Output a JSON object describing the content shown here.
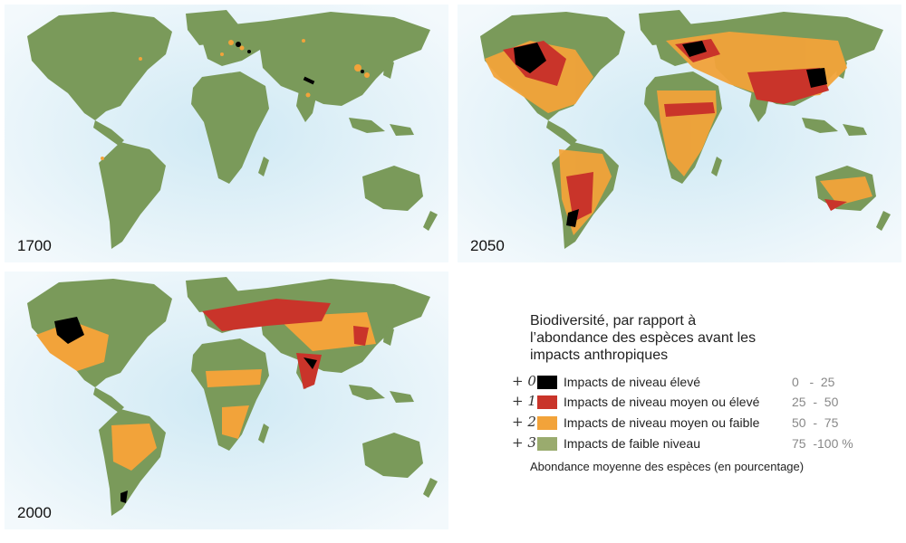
{
  "maps": [
    {
      "year": "1700"
    },
    {
      "year": "2050"
    },
    {
      "year": "2000"
    }
  ],
  "legend": {
    "title_lines": [
      "Biodiversité, par rapport à",
      "l’abondance des espèces avant les",
      "impacts anthropiques"
    ],
    "items": [
      {
        "mark": "+ 0",
        "label": "Impacts de niveau élevé",
        "range": "0   -  25",
        "color": "#000000"
      },
      {
        "mark": "+ 1",
        "label": "Impacts de niveau moyen ou élevé",
        "range": "25  -  50",
        "color": "#c9342a"
      },
      {
        "mark": "+ 2",
        "label": "Impacts de niveau moyen ou faible",
        "range": "50  -  75",
        "color": "#f2a33a"
      },
      {
        "mark": "+ 3",
        "label": "Impacts de faible niveau",
        "range": "75  -100 %",
        "color": "#9aab6e"
      }
    ],
    "footer": "Abondance moyenne des espèces (en pourcentage)"
  },
  "colors": {
    "ocean": "#dff0f7",
    "land": "#7a9a5a",
    "high": "#000000",
    "mid_high": "#c9342a",
    "mid_low": "#f2a33a"
  }
}
